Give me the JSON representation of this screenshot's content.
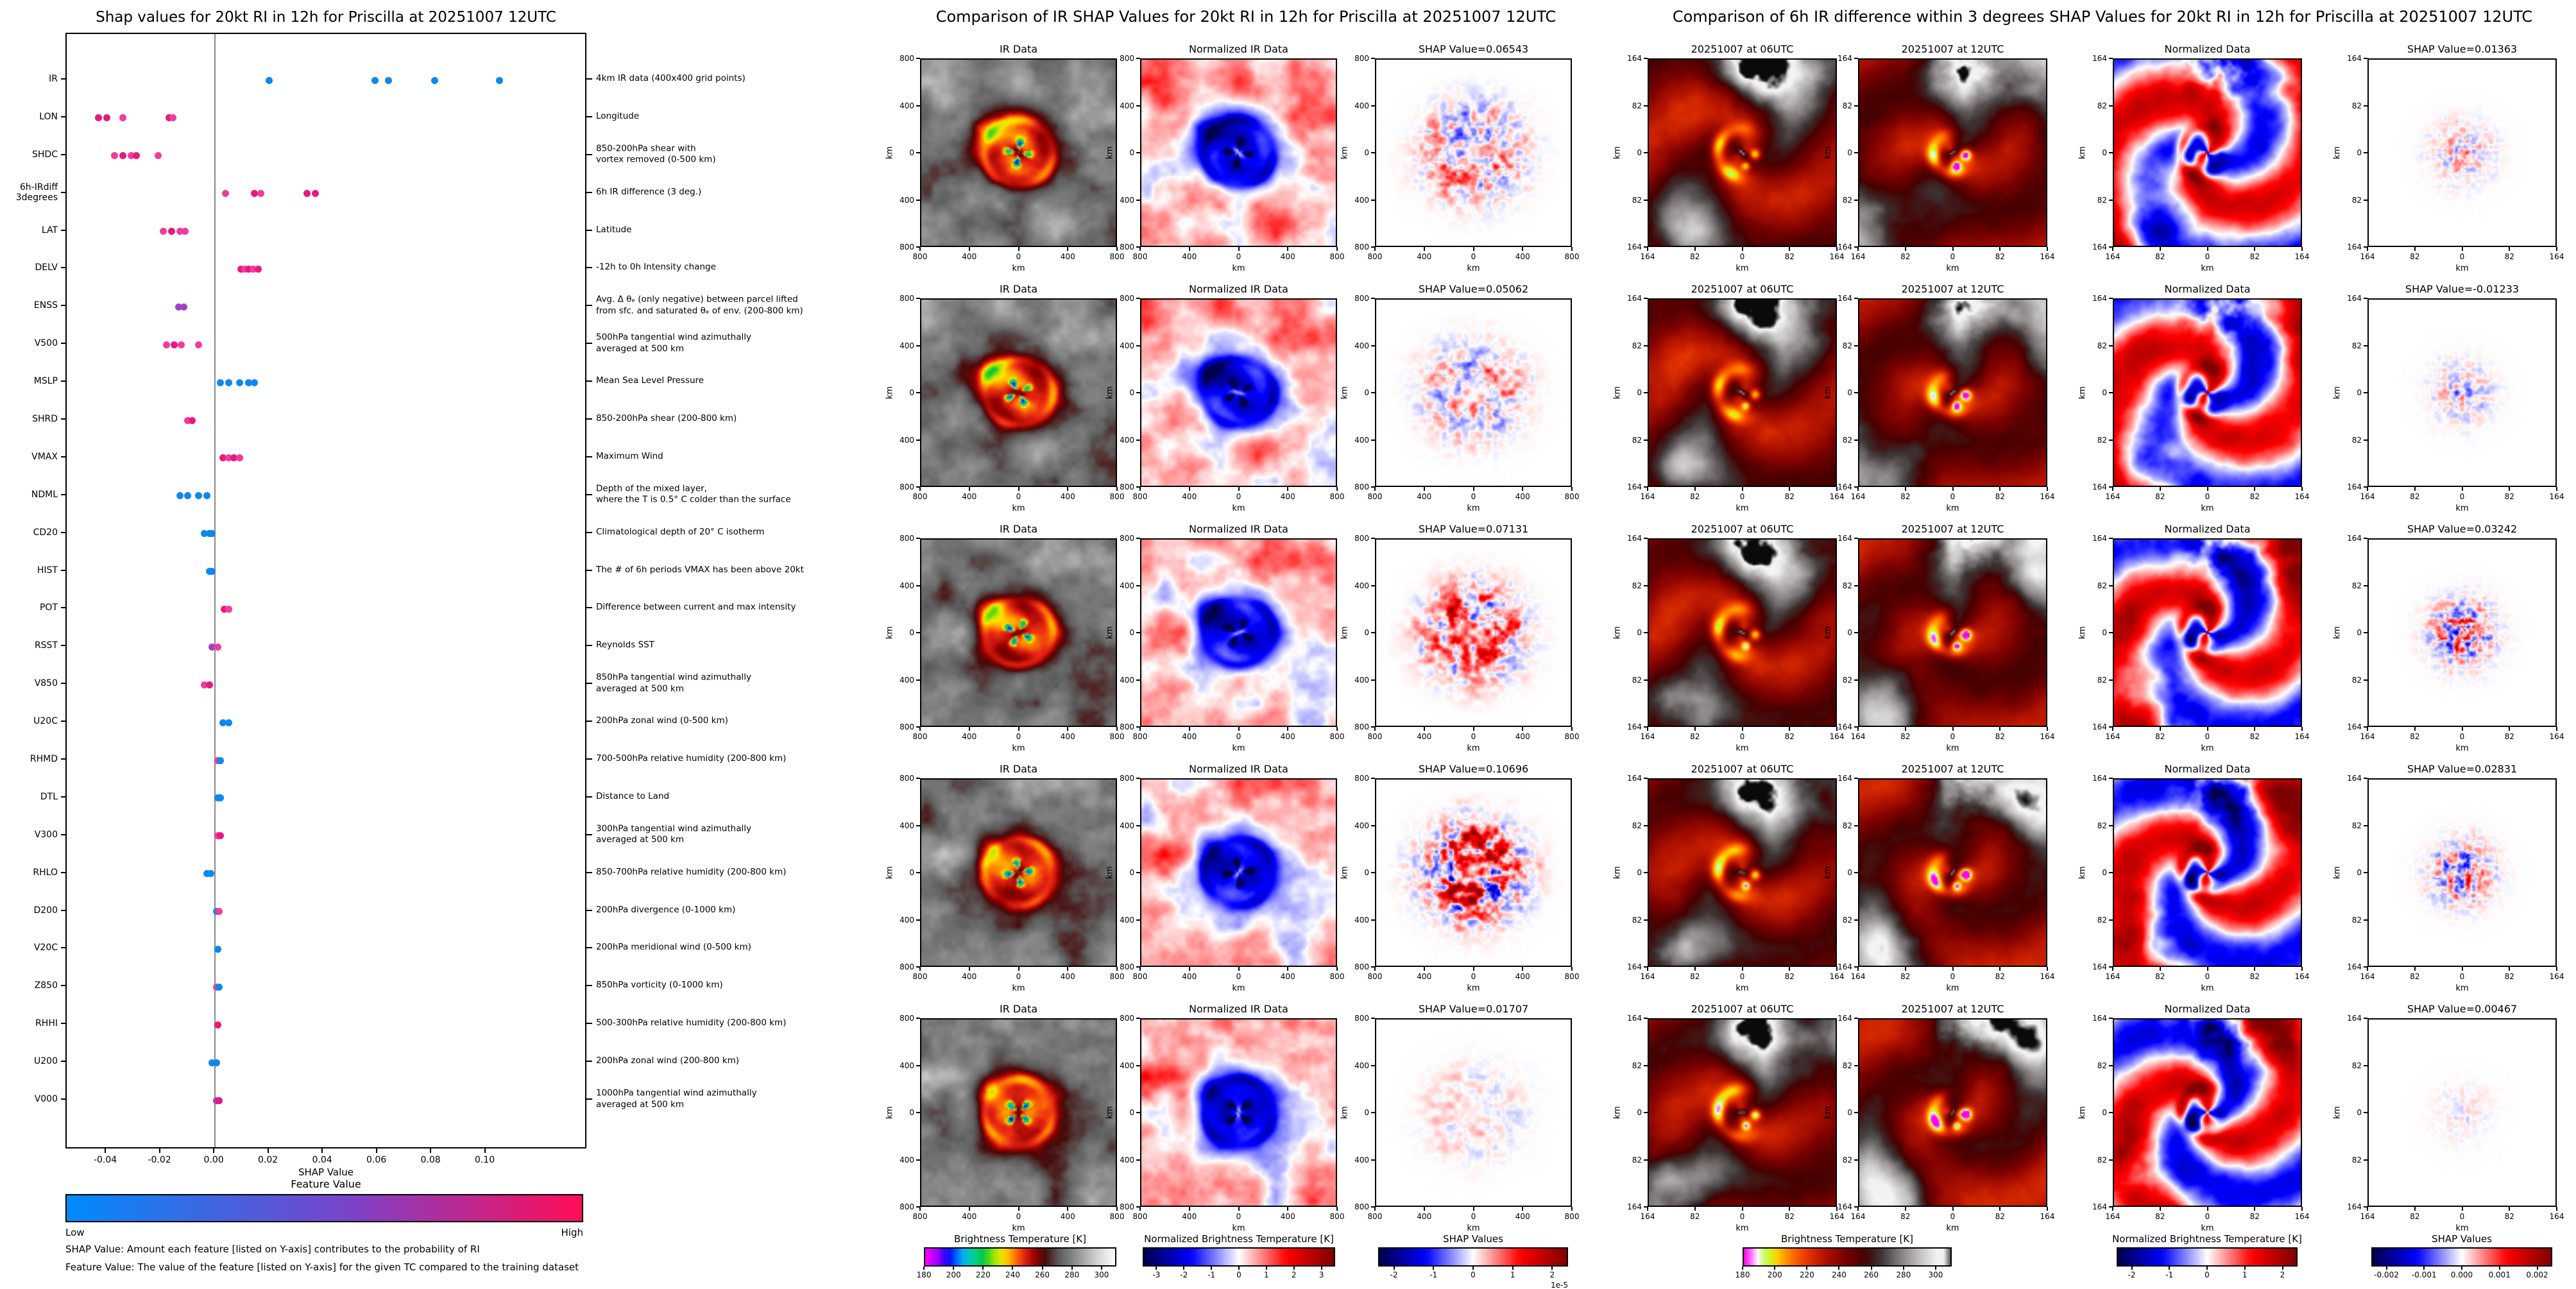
{
  "chart_data": [
    {
      "type": "scatter",
      "subtype": "shap-summary-beeswarm",
      "title": "Shap values for 20kt RI in 12h for Priscilla at 20251007 12UTC",
      "xlabel": "SHAP Value",
      "xlim": [
        -0.0547,
        0.1375
      ],
      "x_tick_values": [
        -0.04,
        -0.02,
        0.0,
        0.02,
        0.04,
        0.06,
        0.08,
        0.1
      ],
      "x_tick_labels": [
        "-0.04",
        "-0.02",
        "0.00",
        "0.02",
        "0.04",
        "0.06",
        "0.08",
        "0.10"
      ],
      "colorbar": {
        "title": "Feature Value",
        "low_label": "Low",
        "high_label": "High",
        "colors": [
          "#008bfb",
          "#7b43c9",
          "#ff0d57"
        ]
      },
      "footnotes": [
        "SHAP Value: Amount each feature [listed on Y-axis] contributes to the probability of RI",
        "Feature Value: The value of the feature [listed on Y-axis] for the given TC compared to the training dataset"
      ],
      "features": [
        {
          "name": "IR",
          "label_lines": [
            "IR"
          ],
          "desc": [
            "4km IR data (400x400 grid points)"
          ],
          "points": [
            {
              "v": 0.02,
              "c": "#0d88f1"
            },
            {
              "v": 0.059,
              "c": "#0d88f1"
            },
            {
              "v": 0.064,
              "c": "#0d88f1"
            },
            {
              "v": 0.081,
              "c": "#0d88f1"
            },
            {
              "v": 0.105,
              "c": "#0d88f1"
            }
          ]
        },
        {
          "name": "LON",
          "label_lines": [
            "LON"
          ],
          "desc": [
            "Longitude"
          ],
          "points": [
            {
              "v": -0.043,
              "c": "#e8197f"
            },
            {
              "v": -0.04,
              "c": "#e8197f"
            },
            {
              "v": -0.034,
              "c": "#f23b9f"
            },
            {
              "v": -0.017,
              "c": "#e8197f"
            },
            {
              "v": -0.0155,
              "c": "#f23b9f"
            }
          ]
        },
        {
          "name": "SHDC",
          "label_lines": [
            "SHDC"
          ],
          "desc": [
            "850-200hPa shear with",
            "vortex removed (0-500 km)"
          ],
          "points": [
            {
              "v": -0.037,
              "c": "#f23b9f"
            },
            {
              "v": -0.034,
              "c": "#e8197f"
            },
            {
              "v": -0.031,
              "c": "#f23b9f"
            },
            {
              "v": -0.029,
              "c": "#e8197f"
            },
            {
              "v": -0.021,
              "c": "#f23b9f"
            }
          ]
        },
        {
          "name": "6h-IRdiff 3degrees",
          "label_lines": [
            "6h-IRdiff",
            "3degrees"
          ],
          "desc": [
            "6h IR difference (3 deg.)"
          ],
          "points": [
            {
              "v": 0.004,
              "c": "#f23b9f"
            },
            {
              "v": 0.0145,
              "c": "#e8197f"
            },
            {
              "v": 0.017,
              "c": "#f23b9f"
            },
            {
              "v": 0.034,
              "c": "#e8197f"
            },
            {
              "v": 0.037,
              "c": "#e8197f"
            }
          ]
        },
        {
          "name": "LAT",
          "label_lines": [
            "LAT"
          ],
          "desc": [
            "Latitude"
          ],
          "points": [
            {
              "v": -0.019,
              "c": "#f23b9f"
            },
            {
              "v": -0.016,
              "c": "#e8197f"
            },
            {
              "v": -0.013,
              "c": "#f23b9f"
            },
            {
              "v": -0.011,
              "c": "#f23b9f"
            }
          ]
        },
        {
          "name": "DELV",
          "label_lines": [
            "DELV"
          ],
          "desc": [
            "-12h to 0h Intensity change"
          ],
          "points": [
            {
              "v": 0.0095,
              "c": "#e8197f"
            },
            {
              "v": 0.011,
              "c": "#f23b9f"
            },
            {
              "v": 0.0125,
              "c": "#e8197f"
            },
            {
              "v": 0.014,
              "c": "#f23b9f"
            },
            {
              "v": 0.016,
              "c": "#e8197f"
            }
          ]
        },
        {
          "name": "ENSS",
          "label_lines": [
            "ENSS"
          ],
          "desc": [
            "Avg. Δ θₑ (only negative) between parcel lifted",
            "from sfc. and saturated θₑ of env. (200-800 km)"
          ],
          "points": [
            {
              "v": -0.0135,
              "c": "#9d44c4"
            },
            {
              "v": -0.0115,
              "c": "#9d44c4"
            }
          ]
        },
        {
          "name": "V500",
          "label_lines": [
            "V500"
          ],
          "desc": [
            "500hPa tangential wind azimuthally",
            "averaged at 500 km"
          ],
          "points": [
            {
              "v": -0.018,
              "c": "#f23b9f"
            },
            {
              "v": -0.015,
              "c": "#e8197f"
            },
            {
              "v": -0.0125,
              "c": "#f23b9f"
            },
            {
              "v": -0.006,
              "c": "#f23b9f"
            }
          ]
        },
        {
          "name": "MSLP",
          "label_lines": [
            "MSLP"
          ],
          "desc": [
            "Mean Sea Level Pressure"
          ],
          "points": [
            {
              "v": 0.002,
              "c": "#0d88f1"
            },
            {
              "v": 0.005,
              "c": "#0d88f1"
            },
            {
              "v": 0.009,
              "c": "#0d88f1"
            },
            {
              "v": 0.0125,
              "c": "#0d88f1"
            },
            {
              "v": 0.0145,
              "c": "#0d88f1"
            }
          ]
        },
        {
          "name": "SHRD",
          "label_lines": [
            "SHRD"
          ],
          "desc": [
            "850-200hPa shear (200-800 km)"
          ],
          "points": [
            {
              "v": -0.01,
              "c": "#f23b9f"
            },
            {
              "v": -0.0085,
              "c": "#e8197f"
            }
          ]
        },
        {
          "name": "VMAX",
          "label_lines": [
            "VMAX"
          ],
          "desc": [
            "Maximum Wind"
          ],
          "points": [
            {
              "v": 0.003,
              "c": "#e8197f"
            },
            {
              "v": 0.005,
              "c": "#f23b9f"
            },
            {
              "v": 0.007,
              "c": "#e8197f"
            },
            {
              "v": 0.009,
              "c": "#f23b9f"
            }
          ]
        },
        {
          "name": "NDML",
          "label_lines": [
            "NDML"
          ],
          "desc": [
            "Depth of the mixed layer,",
            "where the T is 0.5° C colder than the surface"
          ],
          "points": [
            {
              "v": -0.013,
              "c": "#0d88f1"
            },
            {
              "v": -0.01,
              "c": "#0d88f1"
            },
            {
              "v": -0.006,
              "c": "#0d88f1"
            },
            {
              "v": -0.003,
              "c": "#0d88f1"
            }
          ]
        },
        {
          "name": "CD20",
          "label_lines": [
            "CD20"
          ],
          "desc": [
            "Climatological depth of 20° C isotherm"
          ],
          "points": [
            {
              "v": -0.004,
              "c": "#0d88f1"
            },
            {
              "v": -0.002,
              "c": "#0d88f1"
            },
            {
              "v": -0.001,
              "c": "#0d88f1"
            }
          ]
        },
        {
          "name": "HIST",
          "label_lines": [
            "HIST"
          ],
          "desc": [
            "The # of 6h periods VMAX has been above 20kt"
          ],
          "points": [
            {
              "v": -0.002,
              "c": "#0d88f1"
            },
            {
              "v": -0.001,
              "c": "#0d88f1"
            }
          ]
        },
        {
          "name": "POT",
          "label_lines": [
            "POT"
          ],
          "desc": [
            "Difference between current and max intensity"
          ],
          "points": [
            {
              "v": 0.0035,
              "c": "#e8197f"
            },
            {
              "v": 0.005,
              "c": "#f23b9f"
            }
          ]
        },
        {
          "name": "RSST",
          "label_lines": [
            "RSST"
          ],
          "desc": [
            "Reynolds SST"
          ],
          "points": [
            {
              "v": -0.001,
              "c": "#9d44c4"
            },
            {
              "v": 0.001,
              "c": "#f23b9f"
            }
          ]
        },
        {
          "name": "V850",
          "label_lines": [
            "V850"
          ],
          "desc": [
            "850hPa tangential wind azimuthally",
            "averaged at 500 km"
          ],
          "points": [
            {
              "v": -0.004,
              "c": "#f23b9f"
            },
            {
              "v": -0.002,
              "c": "#e8197f"
            }
          ]
        },
        {
          "name": "U20C",
          "label_lines": [
            "U20C"
          ],
          "desc": [
            "200hPa zonal wind (0-500 km)"
          ],
          "points": [
            {
              "v": 0.003,
              "c": "#0d88f1"
            },
            {
              "v": 0.005,
              "c": "#0d88f1"
            }
          ]
        },
        {
          "name": "RHMD",
          "label_lines": [
            "RHMD"
          ],
          "desc": [
            "700-500hPa relative humidity (200-800 km)"
          ],
          "points": [
            {
              "v": 0.001,
              "c": "#f23b9f"
            },
            {
              "v": 0.002,
              "c": "#0d88f1"
            }
          ]
        },
        {
          "name": "DTL",
          "label_lines": [
            "DTL"
          ],
          "desc": [
            "Distance to Land"
          ],
          "points": [
            {
              "v": 0.001,
              "c": "#0d88f1"
            },
            {
              "v": 0.002,
              "c": "#0d88f1"
            }
          ]
        },
        {
          "name": "V300",
          "label_lines": [
            "V300"
          ],
          "desc": [
            "300hPa tangential wind azimuthally",
            "averaged at 500 km"
          ],
          "points": [
            {
              "v": 0.001,
              "c": "#f23b9f"
            },
            {
              "v": 0.002,
              "c": "#e8197f"
            }
          ]
        },
        {
          "name": "RHLO",
          "label_lines": [
            "RHLO"
          ],
          "desc": [
            "850-700hPa relative humidity (200-800 km)"
          ],
          "points": [
            {
              "v": -0.003,
              "c": "#0d88f1"
            },
            {
              "v": -0.0015,
              "c": "#0d88f1"
            }
          ]
        },
        {
          "name": "D200",
          "label_lines": [
            "D200"
          ],
          "desc": [
            "200hPa divergence (0-1000 km)"
          ],
          "points": [
            {
              "v": 0.0005,
              "c": "#0d88f1"
            },
            {
              "v": 0.0015,
              "c": "#f23b9f"
            }
          ]
        },
        {
          "name": "V20C",
          "label_lines": [
            "V20C"
          ],
          "desc": [
            "200hPa meridional wind (0-500 km)"
          ],
          "points": [
            {
              "v": 0.001,
              "c": "#0d88f1"
            }
          ]
        },
        {
          "name": "Z850",
          "label_lines": [
            "Z850"
          ],
          "desc": [
            "850hPa vorticity (0-1000 km)"
          ],
          "points": [
            {
              "v": 0.0005,
              "c": "#f23b9f"
            },
            {
              "v": 0.0015,
              "c": "#0d88f1"
            }
          ]
        },
        {
          "name": "RHHI",
          "label_lines": [
            "RHHI"
          ],
          "desc": [
            "500-300hPa relative humidity (200-800 km)"
          ],
          "points": [
            {
              "v": 0.001,
              "c": "#e8197f"
            }
          ]
        },
        {
          "name": "U200",
          "label_lines": [
            "U200"
          ],
          "desc": [
            "200hPa zonal wind (200-800 km)"
          ],
          "points": [
            {
              "v": -0.001,
              "c": "#0d88f1"
            },
            {
              "v": 0.0005,
              "c": "#0d88f1"
            }
          ]
        },
        {
          "name": "V000",
          "label_lines": [
            "V000"
          ],
          "desc": [
            "1000hPa tangential wind azimuthally",
            "averaged at 500 km"
          ],
          "points": [
            {
              "v": 0.0005,
              "c": "#9d44c4"
            },
            {
              "v": 0.0015,
              "c": "#e8197f"
            }
          ]
        }
      ]
    },
    {
      "type": "heatmap",
      "subtype": "ir-shap-grid",
      "title": "Comparison of IR SHAP Values for 20kt RI in 12h for Priscilla at 20251007 12UTC",
      "col_titles": [
        "IR Data",
        "Normalized IR Data"
      ],
      "rows": [
        {
          "shap_label": "SHAP Value=0.06543",
          "shap_value": 0.06543
        },
        {
          "shap_label": "SHAP Value=0.05062",
          "shap_value": 0.05062
        },
        {
          "shap_label": "SHAP Value=0.07131",
          "shap_value": 0.07131
        },
        {
          "shap_label": "SHAP Value=0.10696",
          "shap_value": 0.10696
        },
        {
          "shap_label": "SHAP Value=0.01707",
          "shap_value": 0.01707
        }
      ],
      "axis_ticks": [
        "800",
        "400",
        "0",
        "400",
        "800"
      ],
      "axis_label": "km",
      "colorbars": [
        {
          "label": "Brightness Temperature [K]",
          "ticks": [
            "180",
            "200",
            "220",
            "240",
            "260",
            "280",
            "300"
          ],
          "tick_values": [
            180,
            200,
            220,
            240,
            260,
            280,
            300
          ],
          "range": [
            180,
            310
          ],
          "cmap": "ir"
        },
        {
          "label": "Normalized Brightness Temperature [K]",
          "ticks": [
            "-3",
            "-2",
            "-1",
            "0",
            "1",
            "2",
            "3"
          ],
          "tick_values": [
            -3,
            -2,
            -1,
            0,
            1,
            2,
            3
          ],
          "range": [
            -3.5,
            3.5
          ],
          "cmap": "seismic"
        },
        {
          "label": "SHAP Values",
          "ticks": [
            "-2",
            "-1",
            "0",
            "1",
            "2"
          ],
          "tick_values": [
            -2,
            -1,
            0,
            1,
            2
          ],
          "range": [
            -2.4,
            2.4
          ],
          "cmap": "seismic",
          "exponent": "1e-5"
        }
      ]
    },
    {
      "type": "heatmap",
      "subtype": "ir-diff-shap-grid",
      "title": "Comparison of 6h IR difference within 3 degrees SHAP Values for 20kt RI in 12h for Priscilla at 20251007 12UTC",
      "col_titles": [
        "20251007 at 06UTC",
        "20251007 at 12UTC",
        "Normalized Data"
      ],
      "rows": [
        {
          "shap_label": "SHAP Value=0.01363",
          "shap_value": 0.01363
        },
        {
          "shap_label": "SHAP Value=-0.01233",
          "shap_value": -0.01233
        },
        {
          "shap_label": "SHAP Value=0.03242",
          "shap_value": 0.03242
        },
        {
          "shap_label": "SHAP Value=0.02831",
          "shap_value": 0.02831
        },
        {
          "shap_label": "SHAP Value=0.00467",
          "shap_value": 0.00467
        }
      ],
      "axis_ticks": [
        "164",
        "82",
        "0",
        "82",
        "164"
      ],
      "axis_label": "km",
      "colorbars": [
        {
          "label": "Brightness Temperature [K]",
          "ticks": [
            "180",
            "200",
            "220",
            "240",
            "260",
            "280",
            "300"
          ],
          "tick_values": [
            180,
            200,
            220,
            240,
            260,
            280,
            300
          ],
          "range": [
            180,
            310
          ],
          "cmap": "ir3"
        },
        {
          "label": "Normalized Brightness Temperature [K]",
          "ticks": [
            "-2",
            "-1",
            "0",
            "1",
            "2"
          ],
          "tick_values": [
            -2,
            -1,
            0,
            1,
            2
          ],
          "range": [
            -2.4,
            2.4
          ],
          "cmap": "seismic"
        },
        {
          "label": "SHAP Values",
          "ticks": [
            "-0.002",
            "-0.001",
            "0.000",
            "0.001",
            "0.002"
          ],
          "tick_values": [
            -0.002,
            -0.001,
            0,
            0.001,
            0.002
          ],
          "range": [
            -0.0024,
            0.0024
          ],
          "cmap": "seismic"
        }
      ]
    }
  ]
}
